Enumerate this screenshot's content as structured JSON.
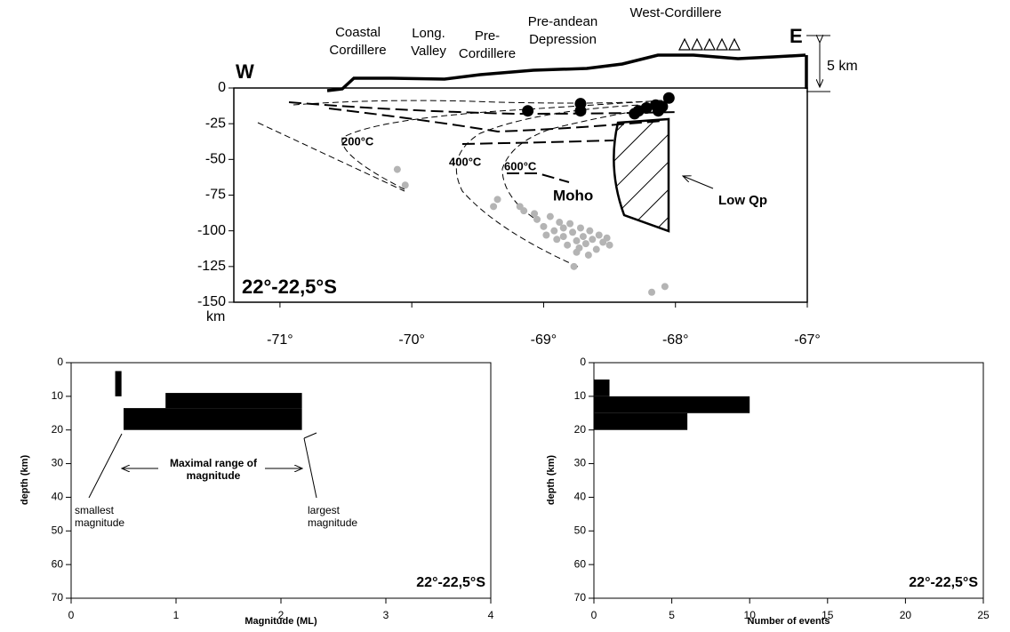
{
  "chart_data": [
    {
      "type": "scatter",
      "title": "22°-22,5°S",
      "y_unit": "km",
      "side_labels": [
        "W",
        "E"
      ],
      "scale_label": "5 km",
      "regions": [
        "Coastal Cordillere",
        "Long. Valley",
        "Pre-Cordillere",
        "Pre-andean Depression",
        "West-Cordillere"
      ],
      "isotherms": [
        "200°C",
        "400°C",
        "600°C"
      ],
      "moho_label": "Moho",
      "low_q_label": "Low Qp",
      "xlim": [
        -71.35,
        -67
      ],
      "ylim": [
        -150,
        0
      ],
      "xticks": [
        {
          "value": -71,
          "label": "-71°"
        },
        {
          "value": -70,
          "label": "-70°"
        },
        {
          "value": -69,
          "label": "-69°"
        },
        {
          "value": -68,
          "label": "-68°"
        },
        {
          "value": -67,
          "label": "-67°"
        }
      ],
      "yticks": [
        0,
        -25,
        -50,
        -75,
        -100,
        -125,
        -150
      ],
      "series": [
        {
          "color": "#000000",
          "x": [
            -69.12,
            -68.72,
            -68.72,
            -68.31,
            -68.22,
            -68.13,
            -68.1,
            -68.05,
            -68.28,
            -68.15
          ],
          "values": [
            -16,
            -11,
            -16,
            -18,
            -14,
            -16,
            -13,
            -7,
            -16,
            -12
          ]
        },
        {
          "color": "#b4b4b4",
          "x": [
            -70.11,
            -70.05,
            -69.35,
            -69.38,
            -69.18,
            -69.15,
            -69.07,
            -69.05,
            -69.0,
            -68.98,
            -68.95,
            -68.92,
            -68.9,
            -68.88,
            -68.85,
            -68.85,
            -68.82,
            -68.8,
            -68.78,
            -68.75,
            -68.73,
            -68.72,
            -68.7,
            -68.68,
            -68.65,
            -68.63,
            -68.6,
            -68.58,
            -68.55,
            -68.52,
            -68.5,
            -68.75,
            -68.66,
            -68.77,
            -68.18,
            -68.08
          ],
          "values": [
            -57,
            -68,
            -78,
            -83,
            -83,
            -86,
            -88,
            -92,
            -97,
            -103,
            -90,
            -100,
            -106,
            -94,
            -98,
            -104,
            -110,
            -95,
            -101,
            -107,
            -112,
            -98,
            -104,
            -109,
            -100,
            -106,
            -113,
            -103,
            -108,
            -105,
            -110,
            -115,
            -117,
            -125,
            -143,
            -139
          ]
        }
      ]
    },
    {
      "type": "range_bar",
      "title": "22°-22,5°S",
      "xlabel": "Magnitude (ML)",
      "ylabel": "depth (km)",
      "annotations": [
        "smallest magnitude",
        "Maximal range of magnitude",
        "largest magnitude"
      ],
      "xlim": [
        0,
        4
      ],
      "ylim": [
        0,
        70
      ],
      "y_reversed": true,
      "xticks": [
        0,
        1,
        2,
        3,
        4
      ],
      "yticks": [
        0,
        10,
        20,
        30,
        40,
        50,
        60,
        70
      ],
      "depth_from": [
        2.5,
        9,
        13.5
      ],
      "depth_to": [
        10,
        13.5,
        20
      ],
      "min_values": [
        0.42,
        0.9,
        0.5
      ],
      "max_values": [
        0.48,
        2.2,
        2.2
      ],
      "color": "#000000"
    },
    {
      "type": "histogram",
      "title": "22°-22,5°S",
      "xlabel": "Number of events",
      "ylabel": "depth (km)",
      "xlim": [
        0,
        25
      ],
      "ylim": [
        0,
        70
      ],
      "y_reversed": true,
      "xticks": [
        0,
        5,
        10,
        15,
        20,
        25
      ],
      "yticks": [
        0,
        10,
        20,
        30,
        40,
        50,
        60,
        70
      ],
      "bins": [
        5,
        10,
        15,
        20
      ],
      "values": [
        1,
        10,
        6
      ],
      "color": "#000000"
    }
  ]
}
